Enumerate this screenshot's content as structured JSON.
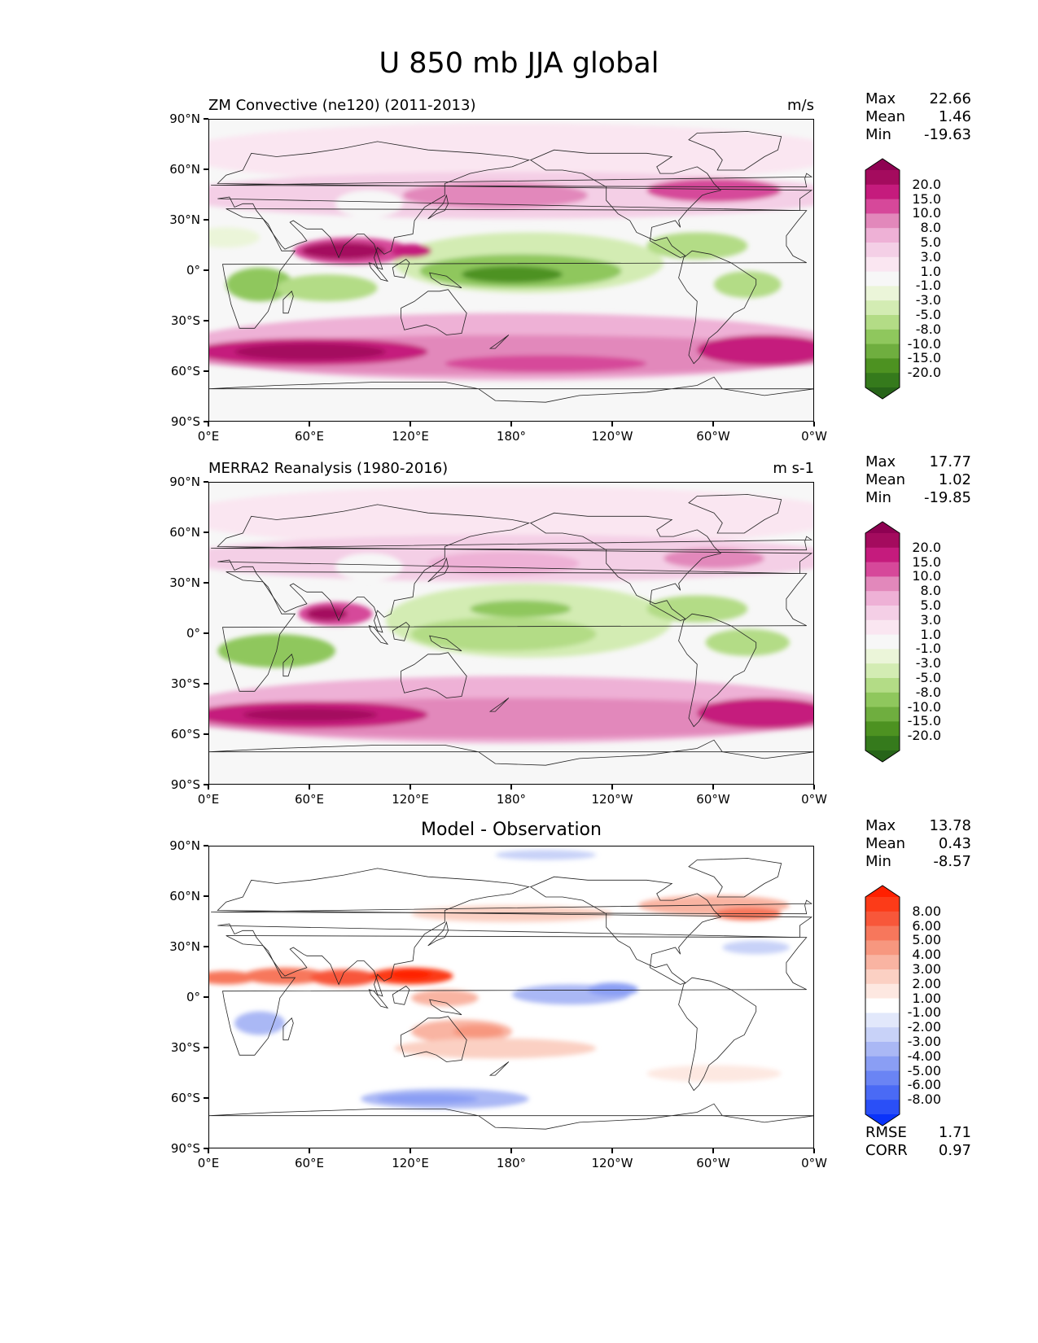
{
  "figure": {
    "title": "U 850 mb JJA global"
  },
  "axes": {
    "lat_labels": [
      "90°N",
      "60°N",
      "30°N",
      "0°",
      "30°S",
      "60°S",
      "90°S"
    ],
    "lon_labels": [
      "0°E",
      "60°E",
      "120°E",
      "180°",
      "120°W",
      "60°W",
      "0°W"
    ]
  },
  "panels": [
    {
      "id": "model",
      "left_title": "ZM Convective (ne120) (2011-2013)",
      "right_title": "m/s",
      "center_title": "",
      "stats": {
        "max_label": "Max",
        "max": "22.66",
        "mean_label": "Mean",
        "mean": "1.46",
        "min_label": "Min",
        "min": "-19.63"
      },
      "colorbar": {
        "levels": [
          "20.0",
          "15.0",
          "10.0",
          "8.0",
          "5.0",
          "3.0",
          "1.0",
          "-1.0",
          "-3.0",
          "-5.0",
          "-8.0",
          "-10.0",
          "-15.0",
          "-20.0"
        ],
        "colors": [
          "#8e0152",
          "#a40b5e",
          "#c51b7d",
          "#d6489a",
          "#e288bb",
          "#eeb1d6",
          "#f4cfe6",
          "#fae6f1",
          "#f7f7f7",
          "#ebf5d9",
          "#d3ecb3",
          "#b3dc86",
          "#8fc75d",
          "#6fae3f",
          "#4d9221",
          "#357a1c",
          "#276419"
        ]
      }
    },
    {
      "id": "obs",
      "left_title": "MERRA2 Reanalysis (1980-2016)",
      "right_title": "m s-1",
      "center_title": "",
      "stats": {
        "max_label": "Max",
        "max": "17.77",
        "mean_label": "Mean",
        "mean": "1.02",
        "min_label": "Min",
        "min": "-19.85"
      },
      "colorbar": {
        "levels": [
          "20.0",
          "15.0",
          "10.0",
          "8.0",
          "5.0",
          "3.0",
          "1.0",
          "-1.0",
          "-3.0",
          "-5.0",
          "-8.0",
          "-10.0",
          "-15.0",
          "-20.0"
        ],
        "colors": [
          "#8e0152",
          "#a40b5e",
          "#c51b7d",
          "#d6489a",
          "#e288bb",
          "#eeb1d6",
          "#f4cfe6",
          "#fae6f1",
          "#f7f7f7",
          "#ebf5d9",
          "#d3ecb3",
          "#b3dc86",
          "#8fc75d",
          "#6fae3f",
          "#4d9221",
          "#357a1c",
          "#276419"
        ]
      }
    },
    {
      "id": "diff",
      "left_title": "",
      "right_title": "",
      "center_title": "Model - Observation",
      "stats": {
        "max_label": "Max",
        "max": "13.78",
        "mean_label": "Mean",
        "mean": "0.43",
        "min_label": "Min",
        "min": "-8.57"
      },
      "extra_stats": {
        "rmse_label": "RMSE",
        "rmse": "1.71",
        "corr_label": "CORR",
        "corr": "0.97"
      },
      "colorbar": {
        "levels": [
          "8.00",
          "6.00",
          "5.00",
          "4.00",
          "3.00",
          "2.00",
          "1.00",
          "-1.00",
          "-2.00",
          "-3.00",
          "-4.00",
          "-5.00",
          "-6.00",
          "-8.00"
        ],
        "colors": [
          "#ff2000",
          "#fc3b18",
          "#f8573a",
          "#f7775c",
          "#f7977f",
          "#f9b4a2",
          "#fbd0c3",
          "#fde8e1",
          "#ffffff",
          "#e2e8fb",
          "#c8d2f8",
          "#aab8f5",
          "#8a9ef4",
          "#6a84f4",
          "#4a6af5",
          "#2a4ff7",
          "#0a33fa"
        ]
      }
    }
  ]
}
